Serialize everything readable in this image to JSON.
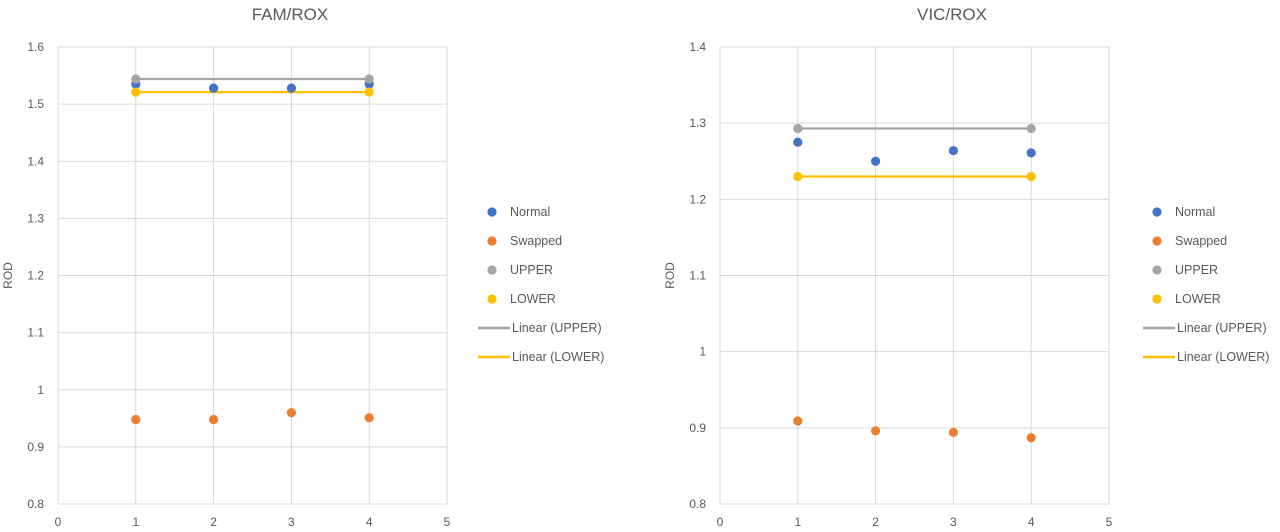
{
  "chart_data": [
    {
      "type": "scatter",
      "title": "FAM/ROX",
      "xlabel": "",
      "ylabel": "ROD",
      "xlim": [
        0,
        5
      ],
      "ylim": [
        0.8,
        1.6
      ],
      "x_ticks": [
        0,
        1,
        2,
        3,
        4,
        5
      ],
      "y_ticks": [
        0.8,
        0.9,
        1,
        1.1,
        1.2,
        1.3,
        1.4,
        1.5,
        1.6
      ],
      "grid": true,
      "legend_position": "right",
      "series": [
        {
          "name": "Normal",
          "kind": "points",
          "color": "#4472c4",
          "x": [
            1,
            2,
            3,
            4
          ],
          "y": [
            1.535,
            1.528,
            1.528,
            1.535
          ]
        },
        {
          "name": "Swapped",
          "kind": "points",
          "color": "#ed7d31",
          "x": [
            1,
            2,
            3,
            4
          ],
          "y": [
            0.948,
            0.948,
            0.96,
            0.951
          ]
        },
        {
          "name": "UPPER",
          "kind": "points",
          "color": "#a5a5a5",
          "x": [
            1,
            4
          ],
          "y": [
            1.544,
            1.544
          ]
        },
        {
          "name": "LOWER",
          "kind": "points",
          "color": "#ffc000",
          "x": [
            1,
            4
          ],
          "y": [
            1.521,
            1.521
          ]
        },
        {
          "name": "Linear (UPPER)",
          "kind": "line",
          "color": "#a5a5a5",
          "x": [
            1,
            4
          ],
          "y": [
            1.544,
            1.544
          ]
        },
        {
          "name": "Linear (LOWER)",
          "kind": "line",
          "color": "#ffc000",
          "x": [
            1,
            4
          ],
          "y": [
            1.521,
            1.521
          ]
        }
      ]
    },
    {
      "type": "scatter",
      "title": "VIC/ROX",
      "xlabel": "",
      "ylabel": "ROD",
      "xlim": [
        0,
        5
      ],
      "ylim": [
        0.8,
        1.4
      ],
      "x_ticks": [
        0,
        1,
        2,
        3,
        4,
        5
      ],
      "y_ticks": [
        0.8,
        0.9,
        1,
        1.1,
        1.2,
        1.3,
        1.4
      ],
      "grid": true,
      "legend_position": "right",
      "series": [
        {
          "name": "Normal",
          "kind": "points",
          "color": "#4472c4",
          "x": [
            1,
            2,
            3,
            4
          ],
          "y": [
            1.275,
            1.25,
            1.264,
            1.261
          ]
        },
        {
          "name": "Swapped",
          "kind": "points",
          "color": "#ed7d31",
          "x": [
            1,
            2,
            3,
            4
          ],
          "y": [
            0.909,
            0.896,
            0.894,
            0.887
          ]
        },
        {
          "name": "UPPER",
          "kind": "points",
          "color": "#a5a5a5",
          "x": [
            1,
            4
          ],
          "y": [
            1.293,
            1.293
          ]
        },
        {
          "name": "LOWER",
          "kind": "points",
          "color": "#ffc000",
          "x": [
            1,
            4
          ],
          "y": [
            1.23,
            1.23
          ]
        },
        {
          "name": "Linear (UPPER)",
          "kind": "line",
          "color": "#a5a5a5",
          "x": [
            1,
            4
          ],
          "y": [
            1.293,
            1.293
          ]
        },
        {
          "name": "Linear (LOWER)",
          "kind": "line",
          "color": "#ffc000",
          "x": [
            1,
            4
          ],
          "y": [
            1.23,
            1.23
          ]
        }
      ]
    }
  ]
}
